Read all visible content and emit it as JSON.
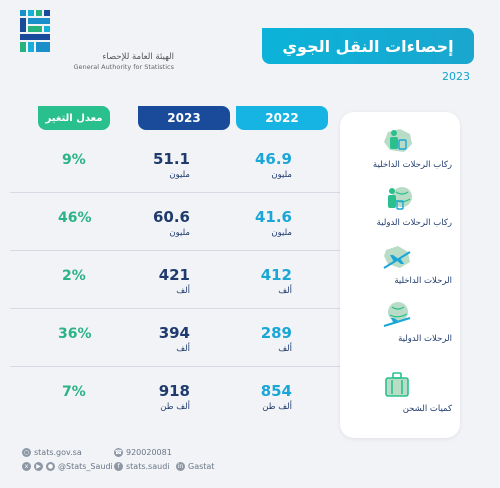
{
  "logo": {
    "arabic": "الهيئة العامة للإحصاء",
    "english": "General Authority for Statistics"
  },
  "title": "إحصاءات النقل الجوي",
  "year": "2023",
  "headers": {
    "change": "معدل التغير",
    "y2023": "2023",
    "y2022": "2022"
  },
  "rows": [
    {
      "category": "ركاب الرحلات الداخلية",
      "icon": "domestic-passenger-icon",
      "v2022": "46.9",
      "u2022": "مليون",
      "v2023": "51.1",
      "u2023": "مليون",
      "change": "9%"
    },
    {
      "category": "ركاب الرحلات الدولية",
      "icon": "international-passenger-icon",
      "v2022": "41.6",
      "u2022": "مليون",
      "v2023": "60.6",
      "u2023": "مليون",
      "change": "46%"
    },
    {
      "category": "الرحلات الداخلية",
      "icon": "domestic-flight-icon",
      "v2022": "412",
      "u2022": "ألف",
      "v2023": "421",
      "u2023": "ألف",
      "change": "2%"
    },
    {
      "category": "الرحلات الدولية",
      "icon": "international-flight-icon",
      "v2022": "289",
      "u2022": "ألف",
      "v2023": "394",
      "u2023": "ألف",
      "change": "36%"
    },
    {
      "category": "كميات الشحن",
      "icon": "cargo-icon",
      "v2022": "854",
      "u2022": "ألف طن",
      "v2023": "918",
      "u2023": "ألف طن",
      "change": "7%"
    }
  ],
  "footer": {
    "website": "stats.gov.sa",
    "phone": "920020081",
    "social1": "@Stats_Saudi",
    "social2": "stats.saudi",
    "social3": "Gastat"
  },
  "colors": {
    "accent": "#16b4e3",
    "navy": "#1a4a9a",
    "green": "#29c08e"
  }
}
